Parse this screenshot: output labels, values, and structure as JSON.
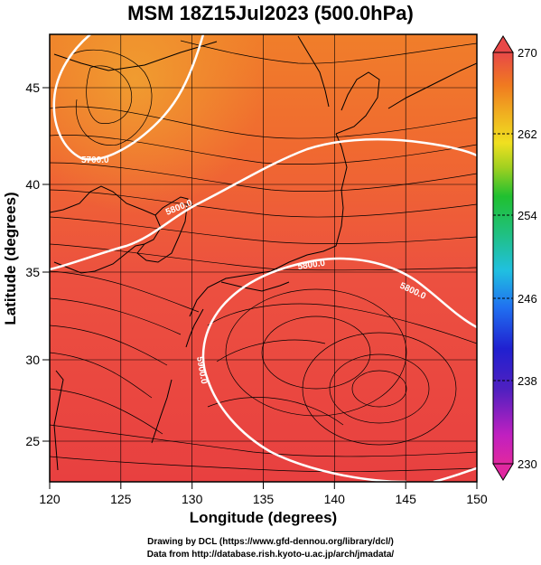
{
  "title": "MSM 18Z15Jul2023 (500.0hPa)",
  "x_axis": {
    "label": "Longitude (degrees)",
    "ticks": [
      "120",
      "125",
      "130",
      "135",
      "140",
      "145",
      "150"
    ]
  },
  "y_axis": {
    "label": "Latitude  (degrees)",
    "ticks": [
      "25",
      "30",
      "35",
      "40",
      "45"
    ]
  },
  "colorbar": {
    "ticks": [
      "270",
      "262",
      "254",
      "246",
      "238",
      "230"
    ],
    "colors": [
      "#e0287a",
      "#f020c0",
      "#8020c0",
      "#2020c0",
      "#2040e0",
      "#20a0f0",
      "#20c8c8",
      "#20c080",
      "#20c020",
      "#80d020",
      "#e0e020",
      "#f0b020",
      "#f08020",
      "#f06030",
      "#e84848"
    ]
  },
  "contours": [
    {
      "label": "5700.0"
    },
    {
      "label": "5800.0"
    },
    {
      "label": "5800.0"
    },
    {
      "label": "5800.0"
    },
    {
      "label": "5900.0"
    }
  ],
  "credits": [
    "Drawing by DCL (https://www.gfd-dennou.org/library/dcl/)",
    "Data from http://database.rish.kyoto-u.ac.jp/arch/jmadata/"
  ]
}
